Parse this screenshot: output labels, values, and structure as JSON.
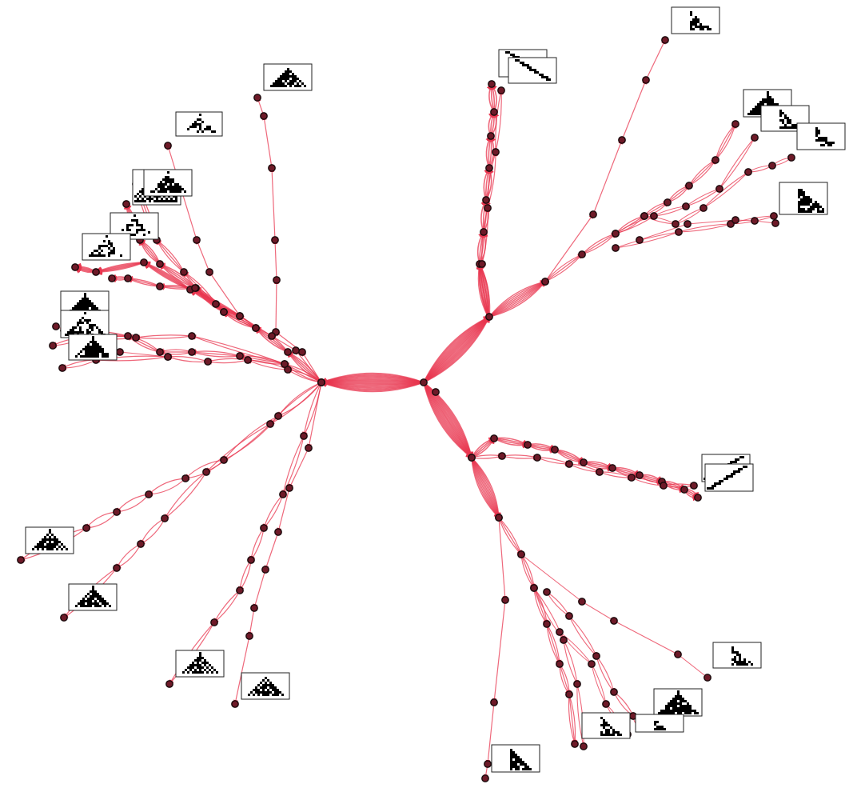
{
  "diagram": {
    "type": "causal-network",
    "edge_color": "#e8364f",
    "node_color": "#6e1a28",
    "thumbnail_style": "cellular-automaton-patterns",
    "branches": [
      {
        "id": "north",
        "pattern": "diagonal"
      },
      {
        "id": "northeast",
        "pattern": "right-triangles"
      },
      {
        "id": "west",
        "pattern": "nested-triangles"
      },
      {
        "id": "southwest",
        "pattern": "sierpinski-like"
      },
      {
        "id": "east",
        "pattern": "diagonal"
      },
      {
        "id": "southeast",
        "pattern": "right-triangles"
      }
    ]
  }
}
